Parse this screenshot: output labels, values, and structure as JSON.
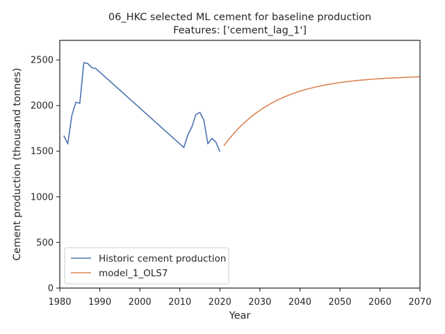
{
  "chart_data": {
    "type": "line",
    "title": "06_HKC selected ML cement for baseline production",
    "subtitle": "Features: ['cement_lag_1']",
    "xlabel": "Year",
    "ylabel": "Cement production (thousand tonnes)",
    "xlim": [
      1980,
      2070
    ],
    "ylim": [
      0,
      2714
    ],
    "xticks": [
      1980,
      1990,
      2000,
      2010,
      2020,
      2030,
      2040,
      2050,
      2060,
      2070
    ],
    "yticks": [
      0,
      500,
      1000,
      1500,
      2000,
      2500
    ],
    "grid": false,
    "legend_position": "lower-left",
    "series": [
      {
        "name": "Historic cement production",
        "color": "#4c72b0",
        "x": [
          1981,
          1982,
          1983,
          1984,
          1985,
          1986,
          1987,
          1988,
          1989,
          2011,
          2012,
          2013,
          2014,
          2015,
          2016,
          2017,
          2018,
          2019,
          2020
        ],
        "y": [
          1670,
          1580,
          1890,
          2035,
          2025,
          2470,
          2460,
          2415,
          2405,
          1540,
          1680,
          1765,
          1900,
          1925,
          1840,
          1580,
          1640,
          1600,
          1495
        ]
      },
      {
        "name": "model_1_OLS7",
        "color": "#dd8452",
        "x": [
          2021,
          2022,
          2023,
          2024,
          2025,
          2026,
          2027,
          2028,
          2029,
          2030,
          2031,
          2032,
          2033,
          2034,
          2035,
          2036,
          2037,
          2038,
          2039,
          2040,
          2041,
          2042,
          2043,
          2044,
          2045,
          2046,
          2047,
          2048,
          2049,
          2050,
          2051,
          2052,
          2053,
          2054,
          2055,
          2056,
          2057,
          2058,
          2059,
          2060,
          2061,
          2062,
          2063,
          2064,
          2065,
          2066,
          2067,
          2068,
          2069,
          2070
        ],
        "y": [
          1560,
          1617,
          1670,
          1719,
          1765,
          1807,
          1846,
          1883,
          1916,
          1948,
          1977,
          2003,
          2028,
          2051,
          2072,
          2092,
          2110,
          2127,
          2142,
          2157,
          2170,
          2182,
          2193,
          2204,
          2213,
          2222,
          2230,
          2238,
          2245,
          2251,
          2257,
          2263,
          2268,
          2273,
          2277,
          2281,
          2285,
          2288,
          2291,
          2294,
          2297,
          2300,
          2302,
          2304,
          2306,
          2308,
          2310,
          2312,
          2313,
          2315
        ]
      }
    ]
  }
}
